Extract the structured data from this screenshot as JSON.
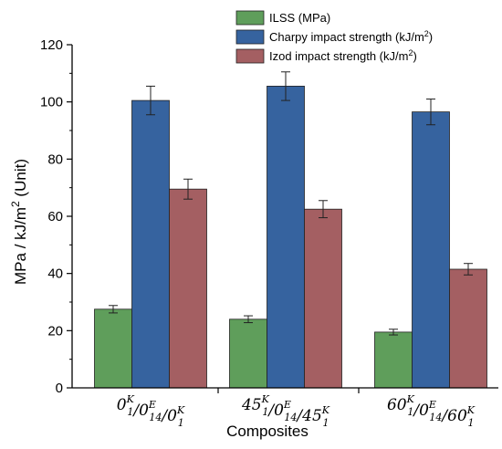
{
  "chart_data": {
    "type": "bar",
    "xlabel": "Composites",
    "ylabel_main": "MPa / kJ/m",
    "ylabel_sup": "2",
    "ylabel_suffix": " (Unit)",
    "ylim": [
      0,
      120
    ],
    "yticks": [
      "0",
      "20",
      "40",
      "60",
      "80",
      "100",
      "120"
    ],
    "categories": [
      {
        "label": "0/0/0",
        "parts": [
          {
            "base": "0",
            "sup": "K",
            "sub": "1"
          },
          {
            "text": "/"
          },
          {
            "base": "0",
            "sup": "E",
            "sub": "14"
          },
          {
            "text": "/"
          },
          {
            "base": "0",
            "sup": "K",
            "sub": "1"
          }
        ]
      },
      {
        "label": "45/0/45",
        "parts": [
          {
            "base": "45",
            "sup": "K",
            "sub": "1"
          },
          {
            "text": "/"
          },
          {
            "base": "0",
            "sup": "E",
            "sub": "14"
          },
          {
            "text": "/"
          },
          {
            "base": "45",
            "sup": "K",
            "sub": "1"
          }
        ]
      },
      {
        "label": "60/0/60",
        "parts": [
          {
            "base": "60",
            "sup": "K",
            "sub": "1"
          },
          {
            "text": "/"
          },
          {
            "base": "0",
            "sup": "E",
            "sub": "14"
          },
          {
            "text": "/"
          },
          {
            "base": "60",
            "sup": "K",
            "sub": "1"
          }
        ]
      }
    ],
    "series": [
      {
        "name": "ILSS (MPa)",
        "legend_main": "ILSS (MPa)",
        "legend_sup": "",
        "legend_tail": "",
        "color": "#5f9e5b",
        "values": [
          27.5,
          24,
          19.5
        ],
        "errors": [
          1.3,
          1.2,
          1.0
        ]
      },
      {
        "name": "Charpy impact strength (kJ/m2)",
        "legend_main": "Charpy impact strength (kJ/m",
        "legend_sup": "2",
        "legend_tail": ")",
        "color": "#36639f",
        "values": [
          100.5,
          105.5,
          96.5
        ],
        "errors": [
          5,
          5,
          4.5
        ]
      },
      {
        "name": "Izod impact strength (kJ/m2)",
        "legend_main": "Izod impact strength (kJ/m",
        "legend_sup": "2",
        "legend_tail": ")",
        "color": "#a45f62",
        "values": [
          69.5,
          62.5,
          41.5
        ],
        "errors": [
          3.5,
          3,
          2
        ]
      }
    ],
    "grid": false,
    "legend_position": "top-right"
  }
}
